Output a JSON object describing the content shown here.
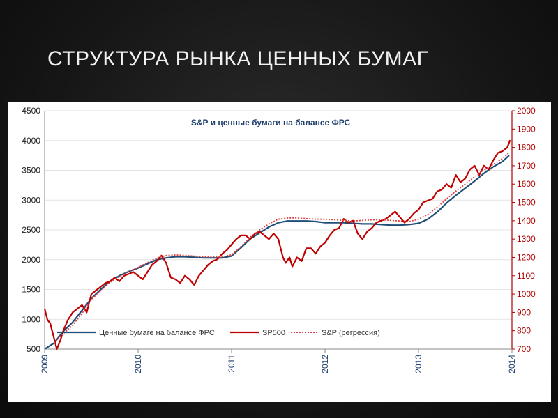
{
  "slide": {
    "title": "СТРУКТУРА РЫНКА ЦЕННЫХ БУМАГ"
  },
  "chart_data": {
    "type": "line",
    "title": "S&P  и ценные бумаги на балансе ФРС",
    "xlabel": "",
    "ylabel_left": "",
    "ylabel_right": "",
    "x_tick_labels": [
      "2009",
      "2010",
      "2011",
      "2012",
      "2013",
      "2014"
    ],
    "x_range": [
      2009.0,
      2014.0
    ],
    "y_left_range": [
      500,
      4500
    ],
    "y_left_ticks": [
      "4500",
      "4000",
      "3500",
      "3000",
      "2500",
      "2000",
      "1500",
      "1000",
      "500"
    ],
    "y_right_range": [
      700,
      2000
    ],
    "y_right_ticks": [
      "2000",
      "1900",
      "1800",
      "1700",
      "1600",
      "1500",
      "1400",
      "1300",
      "1200",
      "1100",
      "1000",
      "900",
      "800",
      "700"
    ],
    "grid": true,
    "legend_position": "bottom-left",
    "series": [
      {
        "name": "Ценные бумаге на балансе ФРС",
        "axis": "left",
        "color": "#1f4e79",
        "style": "solid",
        "x": [
          2009.0,
          2009.1,
          2009.15,
          2009.2,
          2009.3,
          2009.4,
          2009.5,
          2009.6,
          2009.7,
          2009.8,
          2009.9,
          2010.0,
          2010.1,
          2010.2,
          2010.3,
          2010.4,
          2010.5,
          2010.6,
          2010.7,
          2010.8,
          2010.9,
          2011.0,
          2011.1,
          2011.2,
          2011.3,
          2011.4,
          2011.5,
          2011.6,
          2011.7,
          2011.8,
          2011.9,
          2012.0,
          2012.1,
          2012.2,
          2012.3,
          2012.4,
          2012.5,
          2012.6,
          2012.7,
          2012.8,
          2012.9,
          2013.0,
          2013.1,
          2013.2,
          2013.3,
          2013.4,
          2013.5,
          2013.6,
          2013.7,
          2013.8,
          2013.9,
          2013.97
        ],
        "values": [
          500,
          600,
          700,
          800,
          950,
          1150,
          1350,
          1500,
          1640,
          1730,
          1800,
          1860,
          1930,
          2000,
          2030,
          2050,
          2050,
          2040,
          2030,
          2030,
          2030,
          2060,
          2200,
          2350,
          2450,
          2550,
          2620,
          2650,
          2650,
          2650,
          2640,
          2620,
          2620,
          2620,
          2610,
          2600,
          2600,
          2590,
          2580,
          2580,
          2590,
          2610,
          2680,
          2800,
          2950,
          3080,
          3200,
          3320,
          3450,
          3560,
          3650,
          3750
        ]
      },
      {
        "name": "SP500",
        "axis": "right",
        "color": "#c00000",
        "style": "solid",
        "x": [
          2009.0,
          2009.03,
          2009.06,
          2009.1,
          2009.13,
          2009.17,
          2009.2,
          2009.25,
          2009.3,
          2009.35,
          2009.4,
          2009.45,
          2009.5,
          2009.55,
          2009.6,
          2009.65,
          2009.7,
          2009.75,
          2009.8,
          2009.85,
          2009.9,
          2009.95,
          2010.0,
          2010.05,
          2010.1,
          2010.15,
          2010.2,
          2010.25,
          2010.3,
          2010.35,
          2010.4,
          2010.45,
          2010.5,
          2010.55,
          2010.6,
          2010.65,
          2010.7,
          2010.75,
          2010.8,
          2010.85,
          2010.9,
          2010.95,
          2011.0,
          2011.05,
          2011.1,
          2011.15,
          2011.2,
          2011.25,
          2011.3,
          2011.35,
          2011.4,
          2011.45,
          2011.5,
          2011.55,
          2011.58,
          2011.62,
          2011.65,
          2011.7,
          2011.75,
          2011.8,
          2011.85,
          2011.9,
          2011.95,
          2012.0,
          2012.05,
          2012.1,
          2012.15,
          2012.2,
          2012.25,
          2012.3,
          2012.35,
          2012.4,
          2012.45,
          2012.5,
          2012.55,
          2012.6,
          2012.65,
          2012.7,
          2012.75,
          2012.8,
          2012.85,
          2012.9,
          2012.95,
          2013.0,
          2013.05,
          2013.1,
          2013.15,
          2013.2,
          2013.25,
          2013.3,
          2013.35,
          2013.4,
          2013.45,
          2013.5,
          2013.55,
          2013.6,
          2013.65,
          2013.7,
          2013.75,
          2013.8,
          2013.85,
          2013.9,
          2013.95,
          2013.98
        ],
        "values": [
          920,
          860,
          840,
          760,
          700,
          750,
          800,
          860,
          900,
          920,
          940,
          900,
          1000,
          1020,
          1040,
          1060,
          1070,
          1090,
          1070,
          1100,
          1110,
          1120,
          1100,
          1080,
          1120,
          1160,
          1180,
          1210,
          1170,
          1090,
          1080,
          1060,
          1100,
          1080,
          1050,
          1100,
          1130,
          1160,
          1180,
          1190,
          1220,
          1240,
          1270,
          1300,
          1320,
          1320,
          1300,
          1330,
          1340,
          1320,
          1300,
          1330,
          1300,
          1200,
          1170,
          1200,
          1150,
          1200,
          1180,
          1250,
          1250,
          1220,
          1260,
          1280,
          1320,
          1350,
          1360,
          1410,
          1390,
          1400,
          1330,
          1300,
          1340,
          1360,
          1390,
          1400,
          1410,
          1430,
          1450,
          1420,
          1390,
          1410,
          1440,
          1460,
          1500,
          1510,
          1520,
          1560,
          1570,
          1600,
          1580,
          1650,
          1610,
          1630,
          1680,
          1700,
          1650,
          1700,
          1680,
          1730,
          1770,
          1780,
          1800,
          1840
        ]
      },
      {
        "name": "S&P (регрессия)",
        "axis": "left",
        "color": "#e04040",
        "style": "dotted",
        "x": [
          2009.1,
          2009.2,
          2009.3,
          2009.4,
          2009.5,
          2009.6,
          2009.7,
          2009.8,
          2009.9,
          2010.0,
          2010.1,
          2010.2,
          2010.3,
          2010.4,
          2010.5,
          2010.6,
          2010.7,
          2010.8,
          2010.9,
          2011.0,
          2011.1,
          2011.2,
          2011.3,
          2011.4,
          2011.5,
          2011.6,
          2011.7,
          2011.8,
          2011.9,
          2012.0,
          2012.1,
          2012.2,
          2012.3,
          2012.4,
          2012.5,
          2012.6,
          2012.7,
          2012.8,
          2012.9,
          2013.0,
          2013.1,
          2013.2,
          2013.3,
          2013.4,
          2013.5,
          2013.6,
          2013.7,
          2013.8,
          2013.9,
          2013.97
        ],
        "values": [
          600,
          760,
          900,
          1100,
          1330,
          1480,
          1620,
          1720,
          1800,
          1870,
          1950,
          2030,
          2070,
          2080,
          2070,
          2060,
          2050,
          2050,
          2050,
          2080,
          2220,
          2380,
          2500,
          2600,
          2680,
          2700,
          2700,
          2690,
          2680,
          2680,
          2670,
          2660,
          2650,
          2660,
          2670,
          2670,
          2660,
          2650,
          2640,
          2680,
          2760,
          2880,
          3020,
          3150,
          3270,
          3390,
          3500,
          3600,
          3700,
          3800
        ]
      }
    ]
  }
}
